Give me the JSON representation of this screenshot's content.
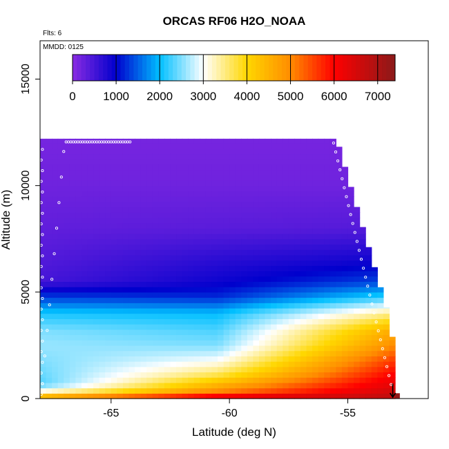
{
  "chart_data": {
    "type": "heatmap",
    "title": "ORCAS RF06 H2O_NOAA",
    "xlabel": "Latitude (deg N)",
    "ylabel": "Altitude (m)",
    "xlim": [
      -68.0,
      -51.6
    ],
    "ylim": [
      0,
      16800
    ],
    "x_ticks": [
      -65,
      -60,
      -55
    ],
    "x_tick_labels": [
      "-65",
      "-60",
      "-55"
    ],
    "y_ticks": [
      0,
      5000,
      10000,
      15000
    ],
    "y_tick_labels": [
      "0",
      "5000",
      "10000",
      "15000"
    ],
    "notes": {
      "flights": "Flts: 6",
      "date": "MMDD: 0125"
    },
    "colorbar": {
      "min": 0,
      "max": 7400,
      "ticks": [
        0,
        1000,
        2000,
        3000,
        4000,
        5000,
        6000,
        7000
      ],
      "tick_labels": [
        "0",
        "1000",
        "2000",
        "3000",
        "4000",
        "5000",
        "6000",
        "7000"
      ],
      "colors": [
        "#8a2be2",
        "#0000cd",
        "#00bfff",
        "#ffffff",
        "#ffd700",
        "#ff8c00",
        "#ff0000",
        "#8b1a1a"
      ],
      "color_positions": [
        0,
        1000,
        2000,
        3000,
        4000,
        5000,
        6000,
        7400
      ]
    },
    "grid": false,
    "field_columns_lat": [
      -68.0,
      -53.0
    ],
    "field_top_altitude": 12200,
    "profile_levels": {
      "altitude": [
        0,
        300,
        700,
        1200,
        1800,
        2500,
        3200,
        4000,
        4800,
        5500,
        6500,
        8000,
        10000,
        12000
      ],
      "value_south": [
        5100,
        3200,
        2300,
        2400,
        2500,
        2600,
        2500,
        2100,
        1300,
        500,
        400,
        300,
        200,
        150
      ],
      "value_mid": [
        6700,
        5100,
        4400,
        3600,
        3000,
        2500,
        2300,
        2000,
        1200,
        900,
        700,
        350,
        200,
        150
      ],
      "value_north": [
        6800,
        6600,
        6300,
        6000,
        5600,
        5000,
        4600,
        3500,
        2200,
        1400,
        900,
        400,
        200,
        150
      ]
    },
    "flight_track": {
      "lat": [
        -67.9,
        -67.8,
        -67.7,
        -67.6,
        -67.5,
        -67.4,
        -67.3,
        -67.2,
        -67.1,
        -67.0,
        -66.9,
        -66.8,
        -66.7,
        -66.6,
        -66.5,
        -66.4,
        -66.3,
        -66.2,
        -66.1,
        -66.0,
        -65.9,
        -65.8,
        -65.7,
        -65.6,
        -65.5,
        -65.4,
        -65.3,
        -65.2,
        -65.1,
        -65.0,
        -64.9,
        -64.8,
        -64.7,
        -64.6,
        -64.5,
        -64.4,
        -64.3,
        -64.2
      ],
      "alt": [
        700,
        2000,
        3200,
        4400,
        5600,
        6800,
        8000,
        9200,
        10400,
        11600,
        12050,
        12050,
        12050,
        12050,
        12050,
        12050,
        12050,
        12050,
        12050,
        12050,
        12050,
        12050,
        12050,
        12050,
        12050,
        12050,
        12050,
        12050,
        12050,
        12050,
        12050,
        12050,
        12050,
        12050,
        12050,
        12050,
        12050,
        12050
      ]
    }
  }
}
